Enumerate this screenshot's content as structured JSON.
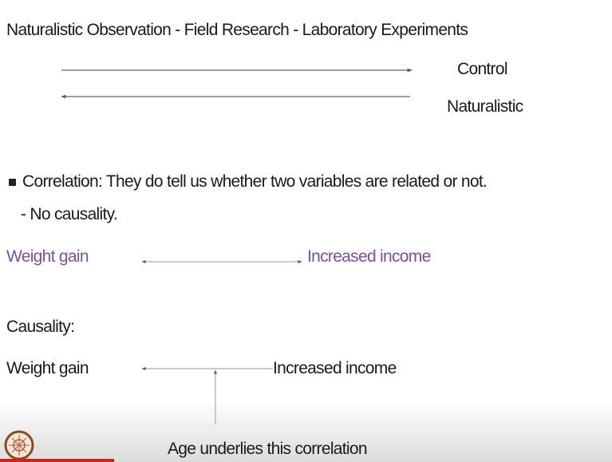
{
  "slide": {
    "title": "Naturalistic Observation - Field Research - Laboratory Experiments",
    "scale": {
      "right_label": "Control",
      "left_label": "Naturalistic"
    },
    "bullet": {
      "text": "Correlation: They do tell us whether two variables are related or not.",
      "sub": "- No causality."
    },
    "correlation": {
      "left": "Weight gain",
      "right": "Increased income"
    },
    "causality": {
      "heading": "Causality:",
      "left": "Weight gain",
      "right": "Increased income",
      "note": "Age underlies this correlation"
    }
  }
}
